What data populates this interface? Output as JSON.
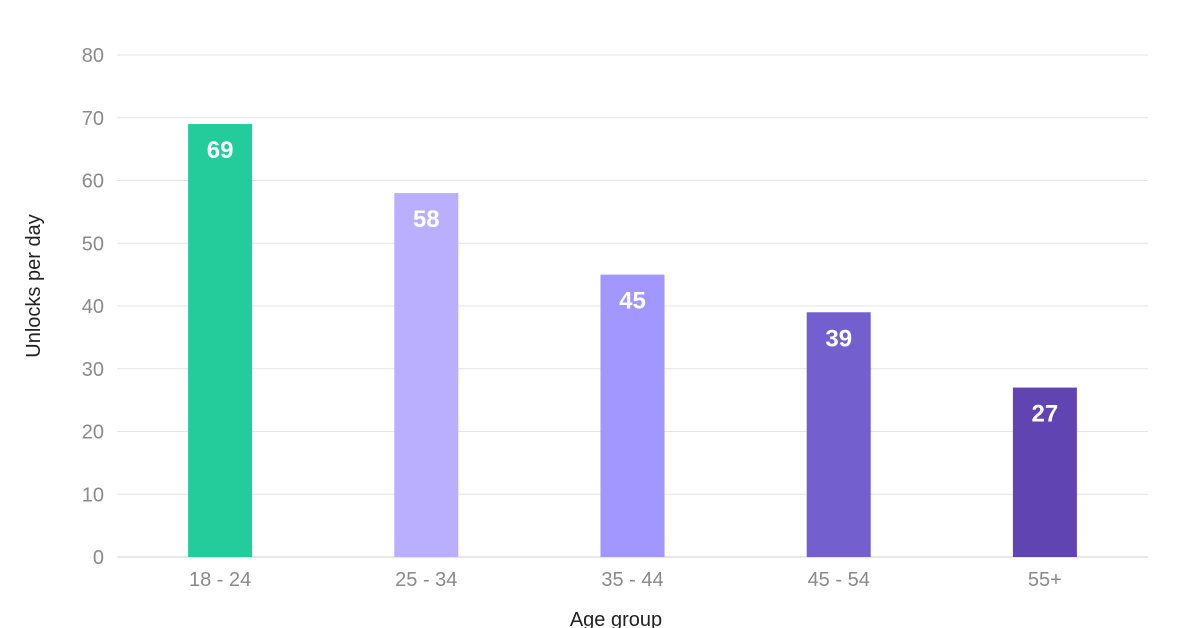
{
  "chart_data": {
    "type": "bar",
    "categories": [
      "18 - 24",
      "25 - 34",
      "35 - 44",
      "45 - 54",
      "55+"
    ],
    "values": [
      69,
      58,
      45,
      39,
      27
    ],
    "data_labels": [
      "69",
      "58",
      "45",
      "39",
      "27"
    ],
    "colors": [
      "#25cc9b",
      "#b9aeff",
      "#a296ff",
      "#735fcd",
      "#6044b2"
    ],
    "xlabel": "Age group",
    "ylabel": "Unlocks per day",
    "ylim": [
      0,
      80
    ],
    "yticks": [
      0,
      10,
      20,
      30,
      40,
      50,
      60,
      70,
      80
    ],
    "grid": true,
    "legend": "none"
  }
}
